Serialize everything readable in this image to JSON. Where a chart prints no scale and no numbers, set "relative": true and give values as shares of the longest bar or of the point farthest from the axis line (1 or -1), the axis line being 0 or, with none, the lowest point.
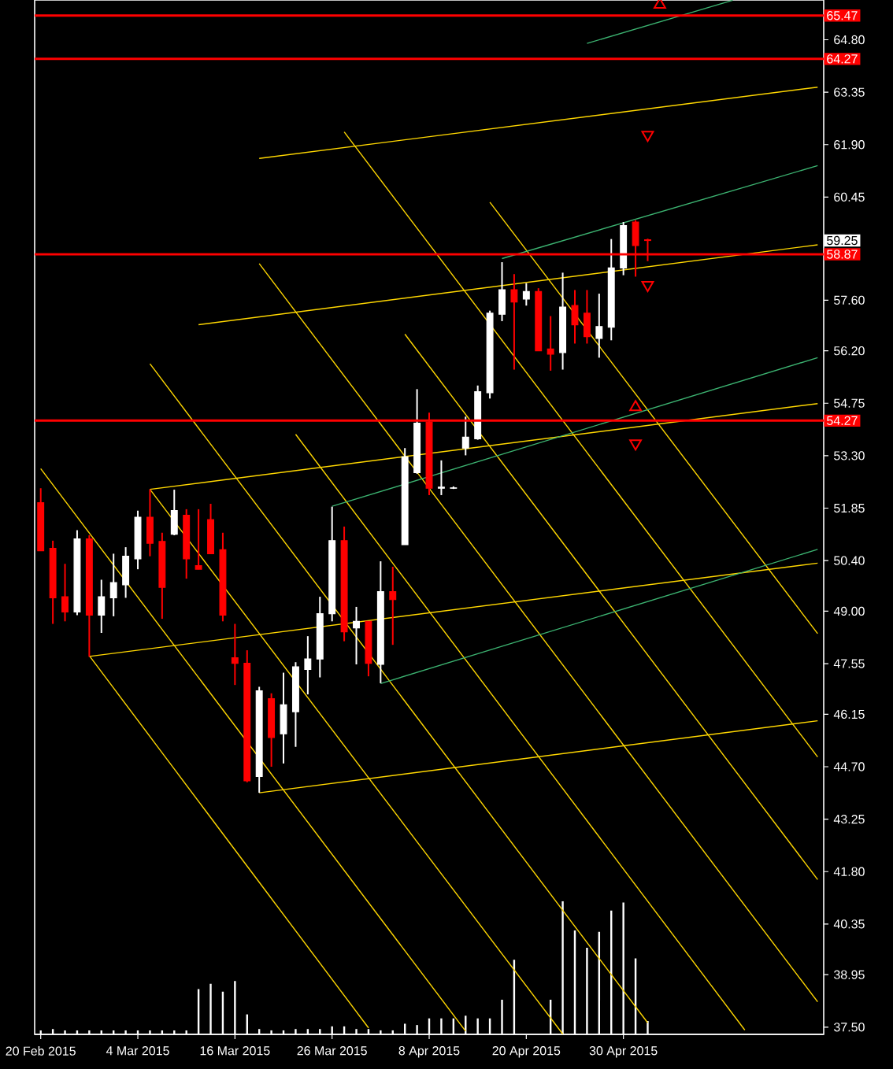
{
  "chart_data": [
    {
      "type": "candlestick",
      "categories": [
        "20 Feb 2015",
        null,
        null,
        null,
        null,
        null,
        null,
        null,
        "4 Mar 2015",
        null,
        null,
        null,
        null,
        null,
        null,
        null,
        "16 Mar 2015",
        null,
        null,
        null,
        null,
        null,
        null,
        null,
        "26 Mar 2015",
        null,
        null,
        null,
        null,
        null,
        null,
        null,
        "8 Apr 2015",
        null,
        null,
        null,
        null,
        null,
        null,
        null,
        "20 Apr 2015",
        null,
        null,
        null,
        null,
        null,
        null,
        null,
        "30 Apr 2015",
        null,
        null,
        null,
        null,
        null,
        null,
        null,
        null,
        null,
        null,
        null,
        null,
        null,
        null,
        null,
        null
      ],
      "ohlc": [
        [
          52.0,
          52.4,
          50.67,
          50.67
        ],
        [
          50.74,
          50.95,
          48.65,
          49.37
        ],
        [
          49.4,
          50.31,
          48.72,
          48.98
        ],
        [
          48.98,
          51.24,
          48.89,
          51.0
        ],
        [
          51.0,
          51.1,
          47.74,
          48.89
        ],
        [
          48.89,
          49.87,
          48.4,
          49.4
        ],
        [
          49.37,
          50.59,
          48.86,
          49.79
        ],
        [
          49.73,
          50.77,
          49.37,
          50.52
        ],
        [
          50.45,
          51.78,
          50.16,
          51.6
        ],
        [
          51.6,
          52.37,
          50.52,
          50.88
        ],
        [
          50.93,
          51.17,
          48.79,
          49.66
        ],
        [
          51.13,
          52.36,
          51.1,
          51.78
        ],
        [
          51.65,
          51.82,
          49.9,
          50.45
        ],
        [
          50.26,
          51.82,
          50.16,
          50.16
        ],
        [
          51.53,
          51.97,
          50.59,
          50.59
        ],
        [
          50.7,
          51.17,
          48.72,
          48.89
        ],
        [
          47.71,
          48.65,
          46.96,
          47.56
        ],
        [
          47.56,
          47.92,
          44.27,
          44.31
        ],
        [
          44.43,
          46.91,
          43.98,
          46.8
        ],
        [
          46.58,
          46.73,
          44.7,
          45.51
        ],
        [
          45.61,
          47.3,
          44.79,
          46.41
        ],
        [
          46.22,
          47.59,
          45.25,
          47.46
        ],
        [
          47.39,
          48.31,
          46.7,
          47.68
        ],
        [
          47.68,
          49.4,
          47.17,
          48.93
        ],
        [
          48.93,
          51.89,
          48.72,
          50.95
        ],
        [
          50.95,
          51.34,
          48.17,
          48.43
        ],
        [
          48.54,
          49.12,
          47.53,
          48.72
        ],
        [
          48.72,
          48.72,
          47.2,
          47.56
        ],
        [
          47.53,
          50.38,
          47.01,
          49.54
        ],
        [
          49.54,
          50.23,
          48.07,
          49.32
        ],
        [
          50.84,
          53.51,
          50.84,
          53.27
        ],
        [
          52.83,
          55.14,
          52.8,
          54.2
        ],
        [
          54.23,
          54.49,
          52.21,
          52.4
        ],
        [
          52.4,
          53.17,
          52.21,
          52.43
        ],
        [
          52.4,
          52.45,
          52.38,
          52.41
        ],
        [
          53.51,
          54.38,
          53.31,
          53.81
        ],
        [
          53.77,
          55.24,
          53.74,
          55.07
        ],
        [
          55.04,
          57.31,
          54.88,
          57.24
        ],
        [
          57.21,
          58.65,
          57.02,
          57.89
        ],
        [
          57.89,
          58.32,
          55.68,
          57.55
        ],
        [
          57.63,
          58.07,
          57.45,
          57.84
        ],
        [
          57.84,
          57.93,
          56.2,
          56.2
        ],
        [
          56.25,
          57.16,
          55.65,
          56.11
        ],
        [
          56.15,
          58.36,
          55.68,
          57.41
        ],
        [
          57.45,
          57.88,
          56.4,
          56.92
        ],
        [
          57.24,
          57.88,
          56.4,
          56.59
        ],
        [
          56.54,
          57.78,
          56.01,
          56.87
        ],
        [
          56.85,
          59.29,
          56.49,
          58.49
        ],
        [
          58.49,
          59.76,
          58.29,
          59.66
        ],
        [
          59.76,
          59.81,
          58.25,
          59.11
        ],
        [
          59.27,
          59.3,
          58.68,
          59.25
        ],
        null,
        null,
        null,
        null,
        null,
        null,
        null,
        null,
        null,
        null,
        null,
        null,
        null,
        null
      ],
      "colors": [
        "#ff0000",
        "#ff0000",
        "#ff0000",
        "#ffffff",
        "#ff0000",
        "#ffffff",
        "#ffffff",
        "#ffffff",
        "#ffffff",
        "#ff0000",
        "#ff0000",
        "#ffffff",
        "#ff0000",
        "#ff0000",
        "#ff0000",
        "#ff0000",
        "#ff0000",
        "#ff0000",
        "#ffffff",
        "#ff0000",
        "#ffffff",
        "#ffffff",
        "#ffffff",
        "#ffffff",
        "#ffffff",
        "#ff0000",
        "#ffffff",
        "#ff0000",
        "#ffffff",
        "#ff0000",
        "#ffffff",
        "#ffffff",
        "#ff0000",
        "#ffffff",
        "#ffffff",
        "#ffffff",
        "#ffffff",
        "#ffffff",
        "#ffffff",
        "#ff0000",
        "#ffffff",
        "#ff0000",
        "#ff0000",
        "#ffffff",
        "#ff0000",
        "#ff0000",
        "#ffffff",
        "#ffffff",
        "#ffffff",
        "#ff0000",
        "#ff0000",
        null,
        null,
        null,
        null,
        null,
        null,
        null,
        null,
        null,
        null,
        null,
        null,
        null,
        null
      ],
      "series": [
        {
          "type": "line",
          "color": "#ffd700",
          "values": [
            52.94,
            null,
            null,
            null,
            null,
            null,
            null,
            null,
            null,
            null,
            null,
            null,
            null,
            null,
            null,
            null,
            null,
            null,
            null,
            null,
            null,
            null,
            null,
            null,
            null,
            null,
            null,
            null,
            null,
            null,
            null,
            null,
            null,
            null,
            null,
            37.39,
            null,
            null,
            null,
            null,
            null,
            null,
            null,
            null,
            null,
            null,
            null,
            null,
            null,
            null,
            null,
            null,
            null,
            null,
            null,
            null,
            null,
            null,
            null,
            null,
            null,
            null,
            null,
            null,
            null
          ]
        },
        {
          "type": "line",
          "color": "#ffd700",
          "values": [
            null,
            null,
            null,
            null,
            47.77,
            null,
            null,
            null,
            null,
            null,
            null,
            null,
            null,
            null,
            null,
            null,
            null,
            null,
            null,
            null,
            null,
            null,
            null,
            null,
            null,
            null,
            null,
            37.48,
            null,
            null,
            null,
            null,
            null,
            null,
            null,
            null,
            null,
            null,
            null,
            null,
            null,
            null,
            null,
            null,
            null,
            null,
            null,
            null,
            null,
            null,
            null,
            null,
            null,
            null,
            null,
            null,
            null,
            null,
            null,
            null,
            null,
            null,
            null,
            null,
            null
          ]
        },
        {
          "type": "line",
          "color": "#ffd700",
          "values": [
            null,
            null,
            null,
            null,
            null,
            null,
            null,
            null,
            null,
            52.37,
            null,
            null,
            null,
            null,
            null,
            null,
            null,
            null,
            null,
            null,
            null,
            null,
            null,
            null,
            null,
            null,
            null,
            null,
            null,
            null,
            null,
            null,
            null,
            null,
            null,
            null,
            null,
            null,
            null,
            null,
            null,
            null,
            null,
            37.31,
            null,
            null,
            null,
            null,
            null,
            null,
            null,
            null,
            null,
            null,
            null,
            null,
            null,
            null,
            null,
            null,
            null,
            null,
            null,
            null,
            null
          ]
        },
        {
          "type": "line",
          "color": "#ffd700",
          "values": [
            null,
            null,
            null,
            null,
            null,
            null,
            null,
            null,
            null,
            55.84,
            null,
            null,
            null,
            null,
            null,
            null,
            null,
            null,
            null,
            null,
            null,
            null,
            null,
            null,
            null,
            null,
            null,
            null,
            null,
            null,
            null,
            null,
            null,
            null,
            null,
            null,
            null,
            null,
            null,
            null,
            null,
            null,
            null,
            null,
            null,
            null,
            null,
            null,
            null,
            null,
            37.62,
            null,
            null,
            null,
            null,
            null,
            null,
            null,
            null,
            null,
            null,
            null,
            null,
            null,
            null
          ]
        },
        {
          "type": "line",
          "color": "#ffd700",
          "values": [
            null,
            null,
            null,
            null,
            null,
            null,
            null,
            null,
            null,
            null,
            null,
            null,
            null,
            null,
            null,
            null,
            null,
            null,
            null,
            null,
            null,
            53.89,
            null,
            null,
            null,
            null,
            null,
            null,
            null,
            null,
            null,
            null,
            null,
            null,
            null,
            null,
            null,
            null,
            null,
            null,
            null,
            null,
            null,
            null,
            null,
            null,
            null,
            null,
            null,
            null,
            null,
            null,
            null,
            null,
            null,
            null,
            null,
            null,
            37.42,
            null,
            null,
            null,
            null,
            null,
            null
          ]
        },
        {
          "type": "line",
          "color": "#ffd700",
          "values": [
            null,
            null,
            null,
            null,
            null,
            null,
            null,
            null,
            null,
            null,
            null,
            null,
            null,
            null,
            null,
            null,
            null,
            null,
            58.61,
            null,
            null,
            null,
            null,
            null,
            null,
            null,
            null,
            null,
            null,
            null,
            null,
            null,
            null,
            null,
            null,
            null,
            null,
            null,
            null,
            null,
            null,
            null,
            null,
            null,
            null,
            null,
            null,
            null,
            null,
            null,
            null,
            null,
            null,
            null,
            null,
            null,
            null,
            null,
            null,
            null,
            null,
            null,
            null,
            null,
            38.2
          ]
        },
        {
          "type": "line",
          "color": "#ffd700",
          "values": [
            null,
            null,
            null,
            null,
            null,
            null,
            null,
            null,
            null,
            null,
            null,
            null,
            null,
            null,
            null,
            null,
            null,
            null,
            null,
            null,
            null,
            null,
            null,
            null,
            null,
            62.25,
            null,
            null,
            null,
            null,
            null,
            null,
            null,
            null,
            null,
            null,
            null,
            null,
            null,
            null,
            null,
            null,
            null,
            null,
            null,
            null,
            null,
            null,
            null,
            null,
            null,
            null,
            null,
            null,
            null,
            null,
            null,
            null,
            null,
            null,
            null,
            null,
            null,
            null,
            44.97
          ]
        },
        {
          "type": "line",
          "color": "#ffd700",
          "values": [
            null,
            null,
            null,
            null,
            null,
            null,
            null,
            null,
            null,
            null,
            null,
            null,
            null,
            null,
            null,
            null,
            null,
            null,
            null,
            null,
            null,
            null,
            null,
            null,
            null,
            null,
            null,
            null,
            null,
            null,
            56.66,
            null,
            null,
            null,
            null,
            null,
            null,
            null,
            null,
            null,
            null,
            null,
            null,
            null,
            null,
            null,
            null,
            null,
            null,
            null,
            null,
            null,
            null,
            null,
            null,
            null,
            null,
            null,
            null,
            null,
            null,
            null,
            null,
            null,
            41.58
          ]
        },
        {
          "type": "line",
          "color": "#ffd700",
          "values": [
            null,
            null,
            null,
            null,
            null,
            null,
            null,
            null,
            null,
            null,
            null,
            null,
            null,
            null,
            null,
            null,
            null,
            null,
            null,
            null,
            null,
            null,
            null,
            null,
            null,
            null,
            null,
            null,
            null,
            null,
            null,
            null,
            null,
            null,
            null,
            null,
            null,
            60.31,
            null,
            null,
            null,
            null,
            null,
            null,
            null,
            null,
            null,
            null,
            null,
            null,
            null,
            null,
            null,
            null,
            null,
            null,
            null,
            null,
            null,
            null,
            null,
            null,
            null,
            null,
            48.38
          ]
        },
        {
          "type": "line",
          "color": "#ffd700",
          "values": [
            null,
            null,
            null,
            null,
            null,
            null,
            null,
            null,
            null,
            null,
            null,
            null,
            null,
            null,
            null,
            null,
            null,
            null,
            61.52,
            null,
            null,
            null,
            null,
            null,
            null,
            null,
            null,
            null,
            null,
            null,
            null,
            null,
            null,
            null,
            null,
            null,
            null,
            null,
            null,
            null,
            null,
            null,
            null,
            null,
            null,
            null,
            null,
            null,
            null,
            null,
            null,
            null,
            null,
            null,
            null,
            null,
            null,
            null,
            null,
            null,
            null,
            null,
            null,
            null,
            63.49
          ]
        },
        {
          "type": "line",
          "color": "#ffd700",
          "values": [
            null,
            null,
            null,
            null,
            null,
            null,
            null,
            null,
            null,
            null,
            null,
            null,
            null,
            56.92,
            null,
            null,
            null,
            null,
            null,
            null,
            null,
            null,
            null,
            null,
            null,
            null,
            null,
            null,
            null,
            null,
            null,
            null,
            null,
            null,
            null,
            null,
            null,
            null,
            null,
            null,
            null,
            null,
            null,
            null,
            null,
            null,
            null,
            null,
            null,
            null,
            null,
            null,
            null,
            null,
            null,
            null,
            null,
            null,
            null,
            null,
            null,
            null,
            null,
            null,
            59.13
          ]
        },
        {
          "type": "line",
          "color": "#ffd700",
          "values": [
            null,
            null,
            null,
            null,
            null,
            null,
            null,
            null,
            null,
            52.37,
            null,
            null,
            null,
            null,
            null,
            null,
            null,
            null,
            null,
            null,
            null,
            null,
            null,
            null,
            null,
            null,
            null,
            null,
            null,
            null,
            null,
            null,
            null,
            null,
            null,
            null,
            null,
            null,
            null,
            null,
            null,
            null,
            null,
            null,
            null,
            null,
            null,
            null,
            null,
            null,
            null,
            null,
            null,
            null,
            null,
            null,
            null,
            null,
            null,
            null,
            null,
            null,
            null,
            null,
            54.74
          ]
        },
        {
          "type": "line",
          "color": "#ffd700",
          "values": [
            null,
            null,
            null,
            null,
            47.75,
            null,
            null,
            null,
            null,
            null,
            null,
            null,
            null,
            null,
            null,
            null,
            null,
            null,
            null,
            null,
            null,
            null,
            null,
            null,
            null,
            null,
            null,
            null,
            null,
            null,
            null,
            null,
            null,
            null,
            null,
            null,
            null,
            null,
            null,
            null,
            null,
            null,
            null,
            null,
            null,
            null,
            null,
            null,
            null,
            null,
            null,
            null,
            null,
            null,
            null,
            null,
            null,
            null,
            null,
            null,
            null,
            null,
            null,
            null,
            50.33
          ]
        },
        {
          "type": "line",
          "color": "#ffd700",
          "values": [
            null,
            null,
            null,
            null,
            null,
            null,
            null,
            null,
            null,
            null,
            null,
            null,
            null,
            null,
            null,
            null,
            null,
            null,
            43.98,
            null,
            null,
            null,
            null,
            null,
            null,
            null,
            null,
            null,
            null,
            null,
            null,
            null,
            null,
            null,
            null,
            null,
            null,
            null,
            null,
            null,
            null,
            null,
            null,
            null,
            null,
            null,
            null,
            null,
            null,
            null,
            null,
            null,
            null,
            null,
            null,
            null,
            null,
            null,
            null,
            null,
            null,
            null,
            null,
            null,
            45.97
          ]
        },
        {
          "type": "line",
          "color": "#3cb371",
          "values": [
            null,
            null,
            null,
            null,
            null,
            null,
            null,
            null,
            null,
            null,
            null,
            null,
            null,
            null,
            null,
            null,
            null,
            null,
            null,
            null,
            null,
            null,
            null,
            null,
            null,
            null,
            null,
            null,
            null,
            null,
            null,
            null,
            null,
            null,
            null,
            null,
            null,
            null,
            null,
            null,
            null,
            null,
            null,
            null,
            null,
            64.7,
            null,
            null,
            null,
            null,
            null,
            null,
            null,
            null,
            null,
            null,
            null,
            65.89,
            null,
            null,
            null,
            null,
            null,
            null,
            null
          ]
        },
        {
          "type": "line",
          "color": "#3cb371",
          "values": [
            null,
            null,
            null,
            null,
            null,
            null,
            null,
            null,
            null,
            null,
            null,
            null,
            null,
            null,
            null,
            null,
            null,
            null,
            null,
            null,
            null,
            null,
            null,
            null,
            null,
            null,
            null,
            null,
            null,
            null,
            null,
            null,
            null,
            null,
            null,
            null,
            null,
            null,
            58.75,
            null,
            null,
            null,
            null,
            null,
            null,
            null,
            null,
            null,
            null,
            null,
            null,
            null,
            null,
            null,
            null,
            null,
            null,
            null,
            null,
            null,
            null,
            null,
            null,
            null,
            61.32
          ]
        },
        {
          "type": "line",
          "color": "#3cb371",
          "values": [
            null,
            null,
            null,
            null,
            null,
            null,
            null,
            null,
            null,
            null,
            null,
            null,
            null,
            null,
            null,
            null,
            null,
            null,
            null,
            null,
            null,
            null,
            null,
            null,
            51.9,
            null,
            null,
            null,
            null,
            null,
            null,
            null,
            null,
            null,
            null,
            null,
            null,
            null,
            null,
            null,
            null,
            null,
            null,
            null,
            null,
            null,
            null,
            null,
            null,
            null,
            null,
            null,
            null,
            null,
            null,
            null,
            null,
            null,
            null,
            null,
            null,
            null,
            null,
            null,
            56.01
          ]
        },
        {
          "type": "line",
          "color": "#3cb371",
          "values": [
            null,
            null,
            null,
            null,
            null,
            null,
            null,
            null,
            null,
            null,
            null,
            null,
            null,
            null,
            null,
            null,
            null,
            null,
            null,
            null,
            null,
            null,
            null,
            null,
            null,
            null,
            null,
            null,
            47.0,
            null,
            null,
            null,
            null,
            null,
            null,
            null,
            null,
            null,
            null,
            null,
            null,
            null,
            null,
            null,
            null,
            null,
            null,
            null,
            null,
            null,
            null,
            null,
            null,
            null,
            null,
            null,
            null,
            null,
            null,
            null,
            null,
            null,
            null,
            null,
            50.71
          ]
        },
        {
          "type": "scatter",
          "marker": "triangle",
          "color": "#ff0000",
          "values": [
            null,
            null,
            null,
            null,
            null,
            null,
            null,
            null,
            null,
            null,
            null,
            null,
            null,
            null,
            null,
            null,
            null,
            null,
            null,
            null,
            null,
            null,
            null,
            null,
            null,
            null,
            null,
            null,
            null,
            null,
            null,
            null,
            null,
            null,
            null,
            null,
            null,
            null,
            null,
            null,
            null,
            null,
            null,
            null,
            null,
            null,
            null,
            null,
            null,
            54.64,
            null,
            65.77,
            null,
            null,
            null,
            null,
            null,
            null,
            null,
            null,
            null,
            null,
            null,
            null,
            null
          ]
        },
        {
          "type": "scatter",
          "marker": "triangle-down",
          "color": "#ff0000",
          "values": [
            null,
            null,
            null,
            null,
            null,
            null,
            null,
            null,
            null,
            null,
            null,
            null,
            null,
            null,
            null,
            null,
            null,
            null,
            null,
            null,
            null,
            null,
            null,
            null,
            null,
            null,
            null,
            null,
            null,
            null,
            null,
            null,
            null,
            null,
            null,
            null,
            null,
            null,
            null,
            null,
            null,
            null,
            null,
            null,
            null,
            null,
            null,
            null,
            null,
            53.64,
            62.17,
            null,
            null,
            null,
            null,
            null,
            null,
            null,
            null,
            null,
            null,
            null,
            null,
            null,
            null
          ]
        },
        {
          "type": "scatter",
          "marker": "triangle-down",
          "color": "#ff0000",
          "values": [
            null,
            null,
            null,
            null,
            null,
            null,
            null,
            null,
            null,
            null,
            null,
            null,
            null,
            null,
            null,
            null,
            null,
            null,
            null,
            null,
            null,
            null,
            null,
            null,
            null,
            null,
            null,
            null,
            null,
            null,
            null,
            null,
            null,
            null,
            null,
            null,
            null,
            null,
            null,
            null,
            null,
            null,
            null,
            null,
            null,
            null,
            null,
            null,
            null,
            null,
            58.02,
            null,
            null,
            null,
            null,
            null,
            null,
            null,
            null,
            null,
            null,
            null,
            null,
            null,
            null
          ]
        }
      ],
      "ylim": [
        37.3,
        65.9
      ],
      "yticks": [
        {
          "value": 37.5,
          "label": "37.50"
        },
        {
          "value": 38.95,
          "label": "38.95"
        },
        {
          "value": 40.35,
          "label": "40.35"
        },
        {
          "value": 41.8,
          "label": "41.80"
        },
        {
          "value": 43.25,
          "label": "43.25"
        },
        {
          "value": 44.7,
          "label": "44.70"
        },
        {
          "value": 46.15,
          "label": "46.15"
        },
        {
          "value": 47.55,
          "label": "47.55"
        },
        {
          "value": 49.0,
          "label": "49.00"
        },
        {
          "value": 50.4,
          "label": "50.40"
        },
        {
          "value": 51.85,
          "label": "51.85"
        },
        {
          "value": 53.3,
          "label": "53.30"
        },
        {
          "value": 54.75,
          "label": "54.75"
        },
        {
          "value": 56.2,
          "label": "56.20"
        },
        {
          "value": 57.6,
          "label": "57.60"
        },
        {
          "value": 60.45,
          "label": "60.45"
        },
        {
          "value": 61.9,
          "label": "61.90"
        },
        {
          "value": 63.35,
          "label": "63.35"
        },
        {
          "value": 64.8,
          "label": "64.80"
        }
      ],
      "ref_lines": [
        {
          "axis": "y",
          "value": 65.47,
          "label": "65.47",
          "color": "#ff0000"
        },
        {
          "axis": "y",
          "value": 64.27,
          "label": "64.27",
          "color": "#ff0000"
        },
        {
          "axis": "y",
          "value": 58.87,
          "label": "58.87",
          "color": "#ff0000"
        },
        {
          "axis": "y",
          "value": 54.27,
          "label": "54.27",
          "color": "#ff0000"
        }
      ],
      "annotations": [
        {
          "text": "59.25",
          "y": 59.25
        }
      ]
    },
    {
      "type": "bar",
      "relative": true,
      "color": "#ffffff",
      "categories": [
        null,
        null,
        null,
        null,
        null,
        null,
        null,
        null,
        null,
        null,
        null,
        null,
        null,
        null,
        null,
        null,
        null,
        null,
        null,
        null,
        null,
        null,
        null,
        null,
        null,
        null,
        null,
        null,
        null,
        null,
        null,
        null,
        null,
        null,
        null,
        null,
        null,
        null,
        null,
        null,
        null,
        null,
        null,
        null,
        null,
        null,
        null,
        null,
        null,
        null,
        null,
        null,
        null,
        null,
        null,
        null,
        null,
        null,
        null,
        null,
        null,
        null,
        null,
        null,
        null
      ],
      "values": [
        0.03,
        0.04,
        0.03,
        0.03,
        0.03,
        0.03,
        0.03,
        0.03,
        0.03,
        0.03,
        0.03,
        0.03,
        0.03,
        0.34,
        0.38,
        0.32,
        0.4,
        0.15,
        0.04,
        0.03,
        0.03,
        0.04,
        0.04,
        0.04,
        0.06,
        0.06,
        0.04,
        0.04,
        0.03,
        0.03,
        0.08,
        0.07,
        0.12,
        0.12,
        0.12,
        0.14,
        0.12,
        0.12,
        0.26,
        0.56,
        null,
        null,
        0.26,
        1,
        0.78,
        0.65,
        0.77,
        0.93,
        0.99,
        0.57,
        0.1,
        null,
        null,
        null,
        null,
        null,
        null,
        null,
        null,
        null,
        null,
        null,
        null,
        null,
        null
      ]
    }
  ]
}
